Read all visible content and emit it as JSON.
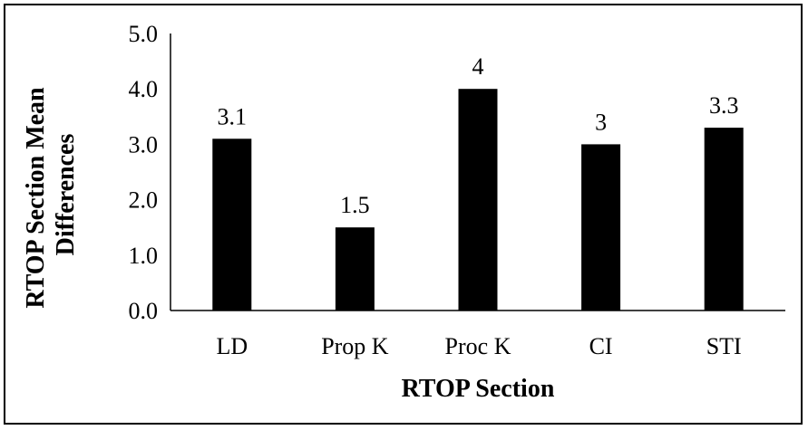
{
  "chart_data": {
    "type": "bar",
    "categories": [
      "LD",
      "Prop K",
      "Proc K",
      "CI",
      "STI"
    ],
    "values": [
      3.1,
      1.5,
      4,
      3,
      3.3
    ],
    "data_labels": [
      "3.1",
      "1.5",
      "4",
      "3",
      "3.3"
    ],
    "xlabel": "RTOP Section",
    "ylabel_lines": [
      "RTOP Section Mean",
      "Differences"
    ],
    "ylim": [
      0,
      5
    ],
    "yticks": [
      0,
      1,
      2,
      3,
      4,
      5
    ],
    "ytick_labels": [
      "0.0",
      "1.0",
      "2.0",
      "3.0",
      "4.0",
      "5.0"
    ],
    "grid": false,
    "legend": "none",
    "bar_color": "#000000"
  }
}
